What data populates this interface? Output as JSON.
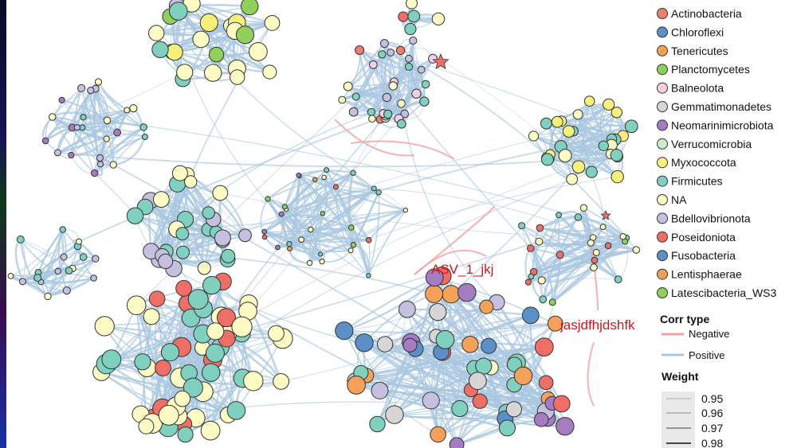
{
  "legend": {
    "phylum_items": [
      {
        "label": "Actinobacteria",
        "color": "#f07f6f"
      },
      {
        "label": "Chloroflexi",
        "color": "#5b8fc7"
      },
      {
        "label": "Tenericutes",
        "color": "#f5a15a"
      },
      {
        "label": "Planctomycetes",
        "color": "#8ed05a"
      },
      {
        "label": "Balneolota",
        "color": "#f8cfe4"
      },
      {
        "label": "Gemmatimonadetes",
        "color": "#d6d6d6"
      },
      {
        "label": "Neomarinimicrobiota",
        "color": "#a57bc1"
      },
      {
        "label": "Verrucomicrobia",
        "color": "#c9ecc9"
      },
      {
        "label": "Myxococcota",
        "color": "#f4f07a"
      },
      {
        "label": "Firmicutes",
        "color": "#7fd0bf"
      },
      {
        "label": "NA",
        "color": "#fdfbc4"
      },
      {
        "label": "Bdellovibrionota",
        "color": "#c5c0e0"
      },
      {
        "label": "Poseidoniota",
        "color": "#ef6f66"
      },
      {
        "label": "Fusobacteria",
        "color": "#5b8fc7"
      },
      {
        "label": "Lentisphaerae",
        "color": "#f3a057"
      },
      {
        "label": "Latescibacteria_WS3",
        "color": "#8ed05a"
      }
    ],
    "corr_title": "Corr type",
    "corr_items": [
      {
        "label": "Negative",
        "color": "#f4a0a0"
      },
      {
        "label": "Positive",
        "color": "#a9c7e0"
      }
    ],
    "weight_title": "Weight",
    "weight_items": [
      "0.95",
      "0.96",
      "0.97",
      "0.98"
    ]
  },
  "annotations": {
    "asv_label": "ASV_1_jkj",
    "other_label": "jasjdfhjdshfk"
  },
  "colors": {
    "edge_positive": "#a9c7e0",
    "edge_negative": "#f4a0a0",
    "node_stroke": "#333333",
    "annotation_red": "#d4141c"
  }
}
